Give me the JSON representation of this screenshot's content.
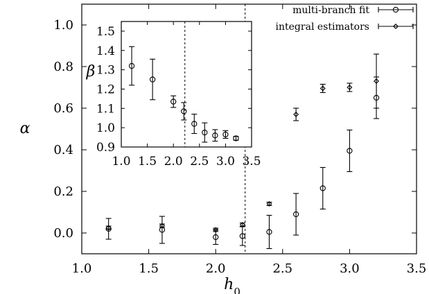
{
  "chart_data": {
    "type": "scatter",
    "main": {
      "xlabel": "h₀",
      "xlabel_base": "h",
      "xlabel_sub": "0",
      "ylabel": "α",
      "xlim": [
        1.0,
        3.5
      ],
      "ylim": [
        -0.1,
        1.1
      ],
      "xticks": [
        1.0,
        1.5,
        2.0,
        2.5,
        3.0,
        3.5
      ],
      "xtick_labels": [
        "1.0",
        "1.5",
        "2.0",
        "2.5",
        "3.0",
        "3.5"
      ],
      "yticks": [
        0.0,
        0.2,
        0.4,
        0.6,
        0.8,
        1.0
      ],
      "ytick_labels": [
        "0.0",
        "0.2",
        "0.4",
        "0.6",
        "0.8",
        "1.0"
      ],
      "vline_x": 2.22,
      "legend_position": "top-right",
      "series": [
        {
          "name": "multi-branch fit",
          "marker": "circle",
          "points": [
            {
              "x": 1.2,
              "y": 0.02,
              "err": 0.05
            },
            {
              "x": 1.6,
              "y": 0.015,
              "err": 0.065
            },
            {
              "x": 2.0,
              "y": -0.02,
              "err": 0.035
            },
            {
              "x": 2.2,
              "y": -0.015,
              "err": 0.045
            },
            {
              "x": 2.4,
              "y": 0.005,
              "err": 0.08
            },
            {
              "x": 2.6,
              "y": 0.09,
              "err": 0.1
            },
            {
              "x": 2.8,
              "y": 0.215,
              "err": 0.1
            },
            {
              "x": 3.0,
              "y": 0.395,
              "err": 0.1
            },
            {
              "x": 3.2,
              "y": 0.65,
              "err": 0.1
            }
          ]
        },
        {
          "name": "integral estimators",
          "marker": "diamond",
          "points": [
            {
              "x": 1.2,
              "y": 0.025,
              "err": 0.008
            },
            {
              "x": 1.6,
              "y": 0.035,
              "err": 0.008
            },
            {
              "x": 2.0,
              "y": 0.015,
              "err": 0.008
            },
            {
              "x": 2.2,
              "y": 0.04,
              "err": 0.008
            },
            {
              "x": 2.4,
              "y": 0.14,
              "err": 0.008
            },
            {
              "x": 2.6,
              "y": 0.57,
              "err": 0.03
            },
            {
              "x": 2.8,
              "y": 0.695,
              "err": 0.02
            },
            {
              "x": 3.0,
              "y": 0.7,
              "err": 0.02
            },
            {
              "x": 3.2,
              "y": 0.73,
              "err": 0.13
            }
          ]
        }
      ]
    },
    "inset": {
      "ylabel": "β",
      "xlim": [
        1.0,
        3.5
      ],
      "ylim": [
        0.9,
        1.55
      ],
      "xticks": [
        1.0,
        1.5,
        2.0,
        2.5,
        3.0,
        3.5
      ],
      "xtick_labels": [
        "1.0",
        "1.5",
        "2.0",
        "2.5",
        "3.0",
        "3.5"
      ],
      "yticks": [
        0.9,
        1.0,
        1.1,
        1.2,
        1.3,
        1.4,
        1.5
      ],
      "ytick_labels": [
        "0.9",
        "1.0",
        "1.1",
        "1.2",
        "1.3",
        "1.4",
        "1.5"
      ],
      "vline_x": 2.22,
      "series": [
        {
          "name": "beta",
          "marker": "circle",
          "points": [
            {
              "x": 1.2,
              "y": 1.32,
              "err": 0.1
            },
            {
              "x": 1.6,
              "y": 1.25,
              "err": 0.105
            },
            {
              "x": 2.0,
              "y": 1.135,
              "err": 0.03
            },
            {
              "x": 2.2,
              "y": 1.085,
              "err": 0.045
            },
            {
              "x": 2.4,
              "y": 1.02,
              "err": 0.05
            },
            {
              "x": 2.6,
              "y": 0.975,
              "err": 0.05
            },
            {
              "x": 2.8,
              "y": 0.96,
              "err": 0.03
            },
            {
              "x": 3.0,
              "y": 0.965,
              "err": 0.02
            },
            {
              "x": 3.2,
              "y": 0.945,
              "err": 0.01
            }
          ]
        }
      ]
    }
  }
}
